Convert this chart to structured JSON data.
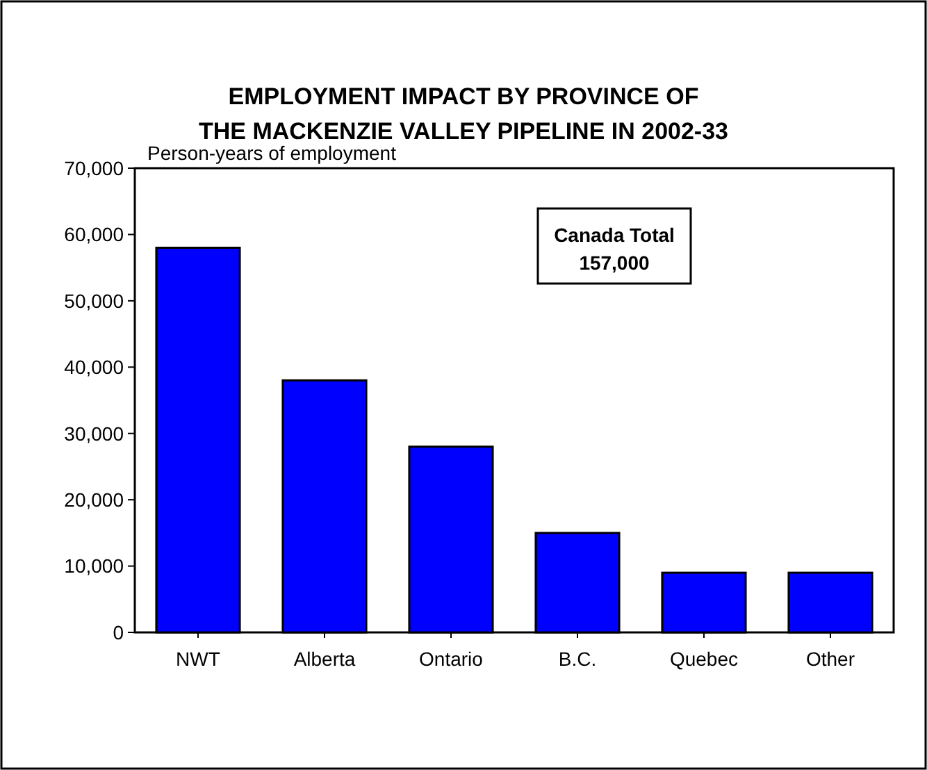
{
  "chart_data": {
    "type": "bar",
    "title": "EMPLOYMENT IMPACT BY PROVINCE OF\nTHE MACKENZIE VALLEY PIPELINE IN 2002-33",
    "ylabel": "Person-years of employment",
    "categories": [
      "NWT",
      "Alberta",
      "Ontario",
      "B.C.",
      "Quebec",
      "Other"
    ],
    "values": [
      58000,
      38000,
      28000,
      15000,
      9000,
      9000
    ],
    "color": "#0000ff",
    "ylim": [
      0,
      70000
    ],
    "yticks": [
      {
        "value": 0,
        "label": "0"
      },
      {
        "value": 10000,
        "label": "10,000"
      },
      {
        "value": 20000,
        "label": "20,000"
      },
      {
        "value": 30000,
        "label": "30,000"
      },
      {
        "value": 40000,
        "label": "40,000"
      },
      {
        "value": 50000,
        "label": "50,000"
      },
      {
        "value": 60000,
        "label": "60,000"
      },
      {
        "value": 70000,
        "label": "70,000"
      }
    ],
    "annotations": [
      "Canada Total\n157,000"
    ]
  }
}
